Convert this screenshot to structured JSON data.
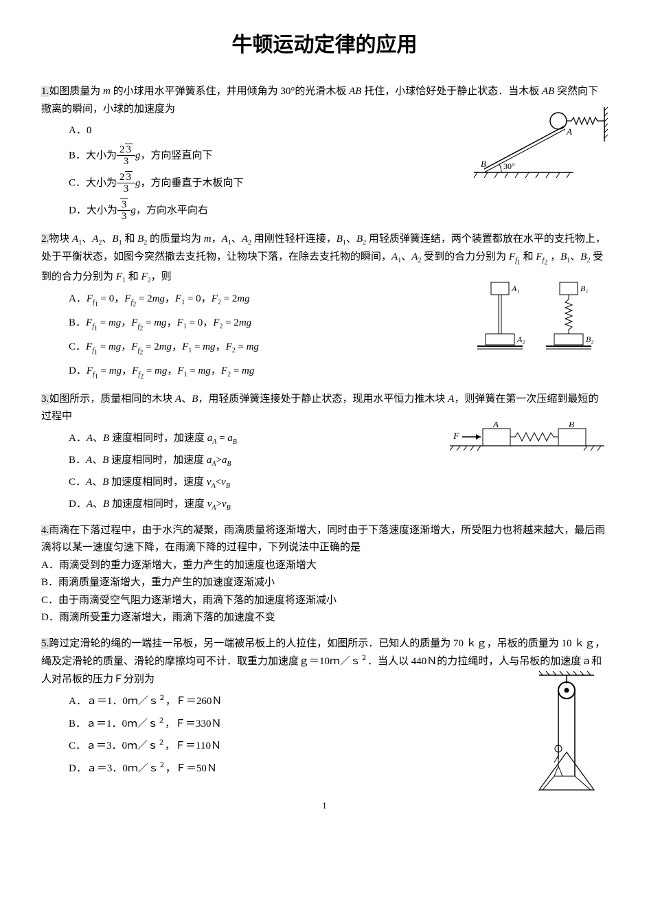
{
  "title": "牛顿运动定律的应用",
  "q1": {
    "num": "1.",
    "text": "如图质量为 <span class='italic'>m</span> 的小球用水平弹簧系住，并用倾角为 30°的光滑木板 <span class='italic'>AB</span> 托住，小球恰好处于静止状态．当木板 <span class='italic'>AB</span> 突然向下撤离的瞬间，小球的加速度为",
    "optA": "A．0",
    "optB_prefix": "B．大小为",
    "optB_suffix": "，方向竖直向下",
    "optC_prefix": "C．大小为",
    "optC_suffix": "，方向垂直于木板向下",
    "optD_prefix": "D．大小为",
    "optD_suffix": "，方向水平向右",
    "frac_num_b": "2√3",
    "frac_num_d": "√3",
    "frac_den": "3",
    "g": "g",
    "fig": {
      "angle_label": "30°",
      "A_label": "A",
      "B_label": "B"
    }
  },
  "q2": {
    "num": "2.",
    "text": "物块 <span class='italic'>A</span><span class='sub'>1</span>、<span class='italic'>A</span><span class='sub'>2</span>、<span class='italic'>B</span><span class='sub'>1</span> 和 <span class='italic'>B</span><span class='sub'>2</span> 的质量均为 <span class='italic'>m</span>，<span class='italic'>A</span><span class='sub'>1</span>、<span class='italic'>A</span><span class='sub'>2</span> 用刚性轻杆连接，<span class='italic'>B</span><span class='sub'>1</span>、<span class='italic'>B</span><span class='sub'>2</span> 用轻质弹簧连结，两个装置都放在水平的支托物上，处于平衡状态，如图今突然撤去支托物，让物块下落，在除去支托物的瞬间，<span class='italic'>A</span><span class='sub'>1</span>、<span class='italic'>A</span><span class='sub'>2</span> 受到的合力分别为 <span class='italic'>F</span><span class='sub'><span class='italic'>f</span><span class='sub'>1</span></span> 和 <span class='italic'>F</span><span class='sub'><span class='italic'>f</span><span class='sub'>2</span></span> ，<span class='italic'>B</span><span class='sub'>1</span>、<span class='italic'>B</span><span class='sub'>2</span> 受到的合力分别为 <span class='italic'>F</span><span class='sub'>1</span> 和 <span class='italic'>F</span><span class='sub'>2</span>，则",
    "optA": "A．<span class='italic'>F</span><span class='sub'><span class='italic'>f</span><span class='sub'>1</span></span> = 0，<span class='italic'>F</span><span class='sub'><span class='italic'>f</span><span class='sub'>2</span></span> = 2<span class='italic'>mg</span>，<span class='italic'>F</span><span class='sub'>1</span> = 0，<span class='italic'>F</span><span class='sub'>2</span> = 2<span class='italic'>mg</span>",
    "optB": "B．<span class='italic'>F</span><span class='sub'><span class='italic'>f</span><span class='sub'>1</span></span> = <span class='italic'>mg</span>，<span class='italic'>F</span><span class='sub'><span class='italic'>f</span><span class='sub'>2</span></span> = <span class='italic'>mg</span>，<span class='italic'>F</span><span class='sub'>1</span> = 0，<span class='italic'>F</span><span class='sub'>2</span> = 2<span class='italic'>mg</span>",
    "optC": "C．<span class='italic'>F</span><span class='sub'><span class='italic'>f</span><span class='sub'>1</span></span> = <span class='italic'>mg</span>，<span class='italic'>F</span><span class='sub'><span class='italic'>f</span><span class='sub'>2</span></span> = 2<span class='italic'>mg</span>，<span class='italic'>F</span><span class='sub'>1</span> = <span class='italic'>mg</span>，<span class='italic'>F</span><span class='sub'>2</span> = <span class='italic'>mg</span>",
    "optD": "D．<span class='italic'>F</span><span class='sub'><span class='italic'>f</span><span class='sub'>1</span></span> = <span class='italic'>mg</span>，<span class='italic'>F</span><span class='sub'><span class='italic'>f</span><span class='sub'>2</span></span> = <span class='italic'>mg</span>，<span class='italic'>F</span><span class='sub'>1</span> = <span class='italic'>mg</span>，<span class='italic'>F</span><span class='sub'>2</span> = <span class='italic'>mg</span>",
    "fig": {
      "A1": "A₁",
      "A2": "A₂",
      "B1": "B₁",
      "B2": "B₂"
    }
  },
  "q3": {
    "num": "3.",
    "text": "如图所示，质量相同的木块 <span class='italic'>A</span>、<span class='italic'>B</span>，用轻质弹簧连接处于静止状态，现用水平恒力推木块 <span class='italic'>A</span>，则弹簧在第一次压缩到最短的过程中",
    "optA": "A．<span class='italic'>A</span>、<span class='italic'>B</span> 速度相同时，加速度 <span class='italic'>a<span class='sub'>A</span></span> = <span class='italic'>a<span class='sub'>B</span></span>",
    "optB": "B．<span class='italic'>A</span>、<span class='italic'>B</span> 速度相同时，加速度 <span class='italic'>a<span class='sub'>A</span></span>&gt;<span class='italic'>a<span class='sub'>B</span></span>",
    "optC": "C．<span class='italic'>A</span>、<span class='italic'>B</span> 加速度相同时，速度 <span class='italic'>v<span class='sub'>A</span></span>&lt;<span class='italic'>v<span class='sub'>B</span></span>",
    "optD": "D．<span class='italic'>A</span>、<span class='italic'>B</span> 加速度相同时，速度 <span class='italic'>v<span class='sub'>A</span></span>&gt;<span class='italic'>v<span class='sub'>B</span></span>",
    "fig": {
      "F": "F",
      "A": "A",
      "B": "B"
    }
  },
  "q4": {
    "num": "4.",
    "text": "雨滴在下落过程中，由于水汽的凝聚，雨滴质量将逐渐增大，同时由于下落速度逐渐增大，所受阻力也将越来越大，最后雨滴将以某一速度匀速下降，在雨滴下降的过程中，下列说法中正确的是",
    "optA": "A．雨滴受到的重力逐渐增大，重力产生的加速度也逐渐增大",
    "optB": "B．雨滴质量逐渐增大，重力产生的加速度逐渐减小",
    "optC": "C．由于雨滴受空气阻力逐渐增大，雨滴下落的加速度将逐渐减小",
    "optD": "D．雨滴所受重力逐渐增大，雨滴下落的加速度不变"
  },
  "q5": {
    "num": "5.",
    "text": "跨过定滑轮的绳的一端挂一吊板，另一端被吊板上的人拉住，如图所示．已知人的质量为 70 ｋｇ，吊板的质量为 10 ｋｇ，绳及定滑轮的质量、滑轮的摩擦均可不计．取重力加速度ｇ＝10ｍ／ｓ<span class='sup'>２</span>．当人以 440Ｎ的力拉绳时，人与吊板的加速度ａ和人对吊板的压力Ｆ分别为",
    "optA": "A．ａ＝1．0ｍ／ｓ<span class='sup'>２</span>，Ｆ＝260Ｎ",
    "optB": "B．ａ＝1．0ｍ／ｓ<span class='sup'>２</span>，Ｆ＝330Ｎ",
    "optC": "C．ａ＝3．0ｍ／ｓ<span class='sup'>２</span>，Ｆ＝110Ｎ",
    "optD": "D．ａ＝3．0ｍ／ｓ<span class='sup'>２</span>，Ｆ＝50Ｎ"
  },
  "pagenum": "1"
}
